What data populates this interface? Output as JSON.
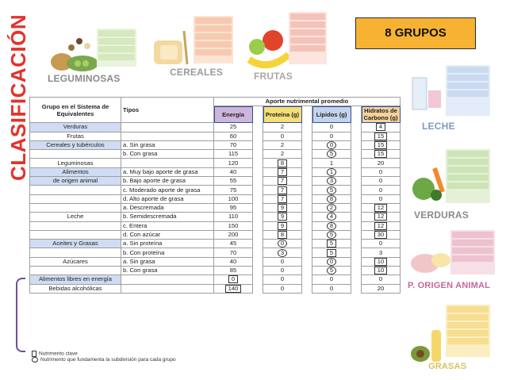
{
  "title": "CLASIFICACIÓN",
  "badge": "8 GRUPOS",
  "groups_top": [
    "LEGUMINOSAS",
    "CEREALES",
    "FRUTAS"
  ],
  "groups_side": [
    "LECHE",
    "VERDURAS",
    "P. ORIGEN ANIMAL",
    "GRASAS"
  ],
  "table": {
    "header_group": "Grupo en el Sistema de Equivalentes",
    "header_tipos": "Tipos",
    "header_aporte": "Aporte nutrimental promedio",
    "col_energia": "Energía",
    "col_proteina": "Proteína (g)",
    "col_lipidos": "Lípidos (g)",
    "col_hidratos": "Hidratos de Carbono (g)",
    "rows": [
      {
        "group": "Verduras",
        "tipo": "",
        "e": "25",
        "p": "2",
        "l": "0",
        "h": "4"
      },
      {
        "group": "Frutas",
        "tipo": "",
        "e": "60",
        "p": "0",
        "l": "0",
        "h": "15"
      },
      {
        "group": "Cereales y tubérculos",
        "tipo": "a. Sin grasa",
        "e": "70",
        "p": "2",
        "l": "0",
        "h": "15"
      },
      {
        "group": "",
        "tipo": "b. Con grasa",
        "e": "115",
        "p": "2",
        "l": "5",
        "h": "15"
      },
      {
        "group": "Leguminosas",
        "tipo": "",
        "e": "120",
        "p": "8",
        "l": "1",
        "h": "20"
      },
      {
        "group": "Alimentos",
        "tipo": "a. Muy bajo aporte de grasa",
        "e": "40",
        "p": "7",
        "l": "1",
        "h": "0"
      },
      {
        "group": "de origen animal",
        "tipo": "b. Bajo aporte de grasa",
        "e": "55",
        "p": "7",
        "l": "3",
        "h": "0"
      },
      {
        "group": "",
        "tipo": "c. Moderado aporte de grasa",
        "e": "75",
        "p": "7",
        "l": "5",
        "h": "0"
      },
      {
        "group": "",
        "tipo": "d. Alto aporte de grasa",
        "e": "100",
        "p": "7",
        "l": "8",
        "h": "0"
      },
      {
        "group": "",
        "tipo": "a. Descremada",
        "e": "95",
        "p": "9",
        "l": "2",
        "h": "12"
      },
      {
        "group": "Leche",
        "tipo": "b. Semidescremada",
        "e": "110",
        "p": "9",
        "l": "4",
        "h": "12"
      },
      {
        "group": "",
        "tipo": "c. Entera",
        "e": "150",
        "p": "9",
        "l": "8",
        "h": "12"
      },
      {
        "group": "",
        "tipo": "d. Con azúcar",
        "e": "200",
        "p": "8",
        "l": "5",
        "h": "30"
      },
      {
        "group": "Aceites y Grasas",
        "tipo": "a. Sin proteína",
        "e": "45",
        "p": "0",
        "l": "5",
        "h": "0"
      },
      {
        "group": "",
        "tipo": "b. Con proteína",
        "e": "70",
        "p": "3",
        "l": "5",
        "h": "3"
      },
      {
        "group": "Azúcares",
        "tipo": "a. Sin grasa",
        "e": "40",
        "p": "0",
        "l": "0",
        "h": "10"
      },
      {
        "group": "",
        "tipo": "b. Con grasa",
        "e": "85",
        "p": "0",
        "l": "5",
        "h": "10"
      },
      {
        "group": "Alimentos libres en energía",
        "tipo": "",
        "e": "0",
        "p": "0",
        "l": "0",
        "h": "0"
      },
      {
        "group": "Bebidas alcohólicas",
        "tipo": "",
        "e": "140",
        "p": "0",
        "l": "0",
        "h": "20"
      }
    ]
  },
  "legend": {
    "key": "Nutrimento clave",
    "sub": "Nutrimento que fundamenta la subdivisión para cada grupo"
  },
  "colors": {
    "title": "#e4312b",
    "badge": "#f7b233",
    "group_label": "#8a8a8a",
    "highlight": "#2d4f9c"
  }
}
